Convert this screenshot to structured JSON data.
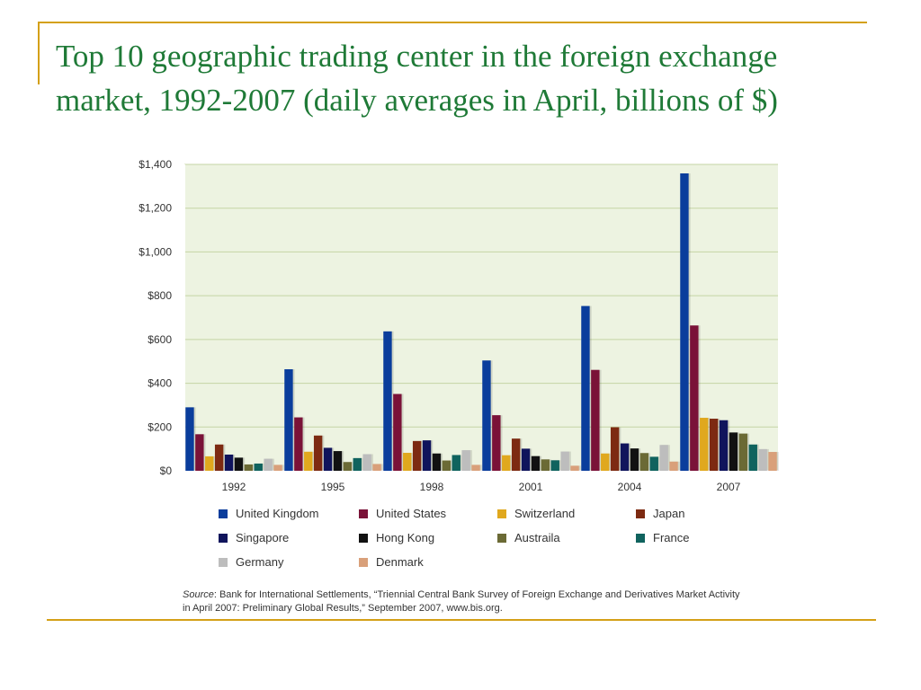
{
  "slide": {
    "title": "Top 10 geographic trading center in the foreign exchange market, 1992-2007 (daily averages in April, billions of $)"
  },
  "source": {
    "label": "Source",
    "text": ": Bank for International Settlements, “Triennial Central Bank Survey of Foreign Exchange and Derivatives Market Activity in April 2007: Preliminary Global Results,” September 2007, www.bis.org."
  },
  "colors": {
    "plot_background": "#edf3e1",
    "grid": "#c5d5a5"
  },
  "chart_data": {
    "type": "bar",
    "title": "",
    "xlabel": "",
    "ylabel": "",
    "categories": [
      "1992",
      "1995",
      "1998",
      "2001",
      "2004",
      "2007"
    ],
    "ylim": [
      0,
      1400
    ],
    "yticks": [
      0,
      200,
      400,
      600,
      800,
      1000,
      1200,
      1400
    ],
    "ytick_labels": [
      "$0",
      "$200",
      "$400",
      "$600",
      "$800",
      "$1,000",
      "$1,200",
      "$1,400"
    ],
    "grid": true,
    "legend_position": "bottom",
    "series": [
      {
        "name": "United Kingdom",
        "color": "#0a3d9c",
        "values": [
          290,
          464,
          637,
          504,
          753,
          1359
        ]
      },
      {
        "name": "United States",
        "color": "#7a1238",
        "values": [
          167,
          244,
          351,
          254,
          461,
          664
        ]
      },
      {
        "name": "Switzerland",
        "color": "#e0a81e",
        "values": [
          66,
          87,
          82,
          71,
          79,
          242
        ]
      },
      {
        "name": "Japan",
        "color": "#7d2a12",
        "values": [
          120,
          161,
          136,
          147,
          199,
          238
        ]
      },
      {
        "name": "Singapore",
        "color": "#10145c",
        "values": [
          74,
          105,
          139,
          101,
          125,
          231
        ]
      },
      {
        "name": "Hong Kong",
        "color": "#111111",
        "values": [
          60,
          90,
          79,
          67,
          102,
          175
        ]
      },
      {
        "name": "Austraila",
        "color": "#6b6a35",
        "values": [
          29,
          40,
          47,
          52,
          81,
          170
        ]
      },
      {
        "name": "France",
        "color": "#10635e",
        "values": [
          33,
          58,
          72,
          48,
          64,
          120
        ]
      },
      {
        "name": "Germany",
        "color": "#bdbdbd",
        "values": [
          55,
          76,
          94,
          88,
          118,
          99
        ]
      },
      {
        "name": "Denmark",
        "color": "#d9a07a",
        "values": [
          27,
          31,
          27,
          23,
          42,
          86
        ]
      }
    ]
  }
}
